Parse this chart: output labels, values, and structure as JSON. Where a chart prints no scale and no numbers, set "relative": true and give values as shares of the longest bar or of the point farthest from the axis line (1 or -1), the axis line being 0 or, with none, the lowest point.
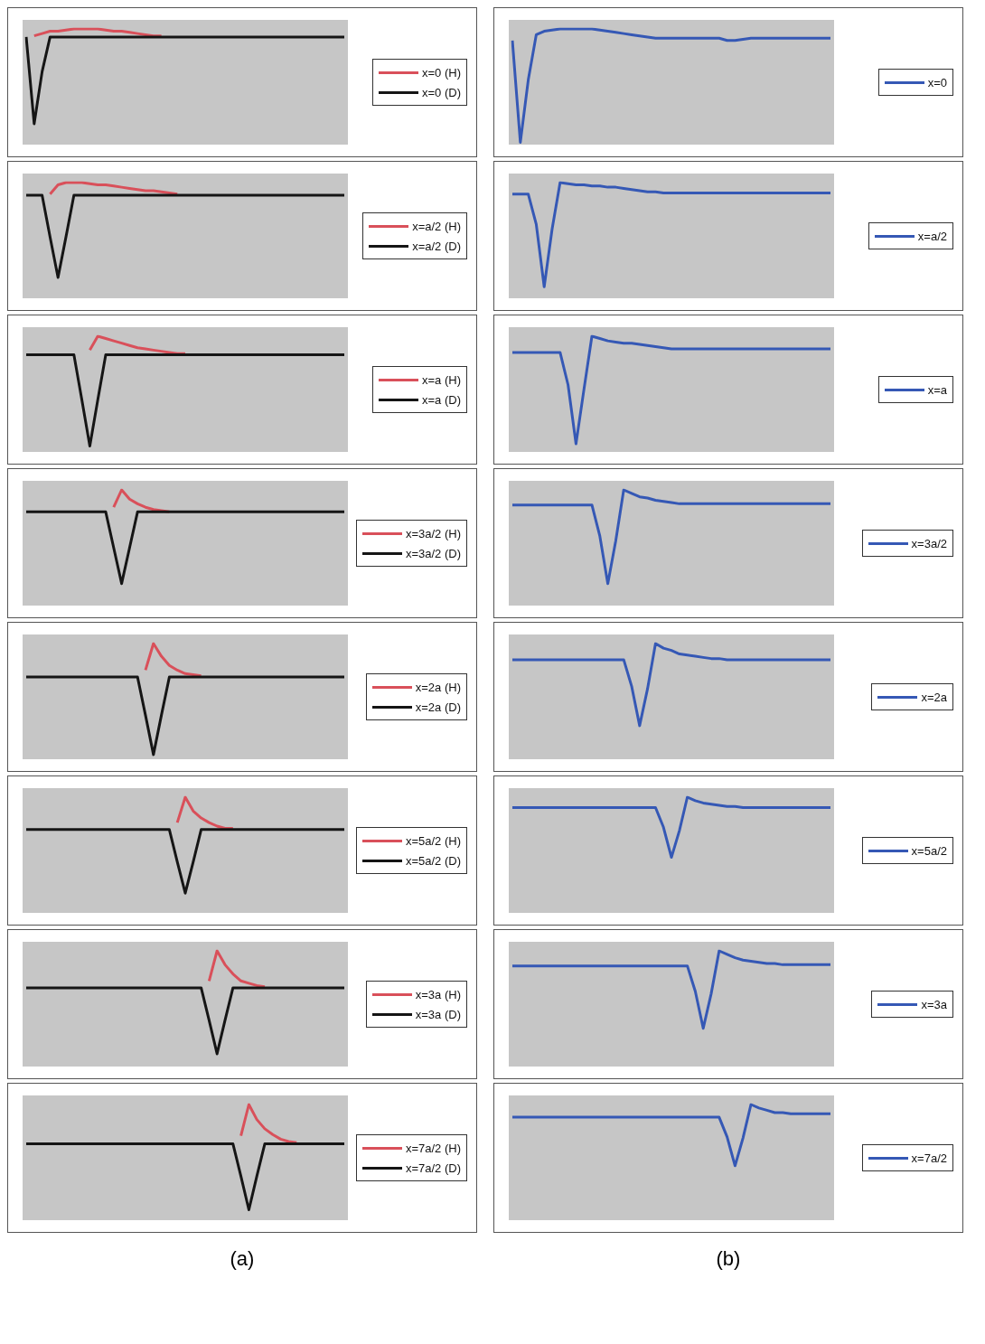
{
  "chart_data": [
    {
      "type": "line",
      "relative": true,
      "legend": "right",
      "categories": [
        null,
        null,
        null,
        null,
        null,
        null,
        null,
        null,
        null,
        null,
        null,
        null,
        null,
        null,
        null,
        null,
        null,
        null,
        null,
        null,
        null,
        null,
        null,
        null,
        null,
        null,
        null,
        null,
        null,
        null,
        null,
        null,
        null,
        null,
        null,
        null,
        null,
        null,
        null,
        null,
        null
      ],
      "series": [
        {
          "name": "x=0 (H)",
          "color": "#d9505a",
          "values": [
            null,
            0.94,
            0.96,
            0.98,
            0.98,
            0.99,
            1,
            1,
            1,
            1,
            0.99,
            0.98,
            0.98,
            0.97,
            0.96,
            0.95,
            0.94,
            0.94,
            null,
            null,
            null,
            null,
            null,
            null,
            null,
            null,
            null,
            null,
            null,
            null,
            null,
            null,
            null,
            null,
            null,
            null,
            null,
            null,
            null,
            null,
            null
          ]
        },
        {
          "name": "x=0 (D)",
          "color": "#151515",
          "values": [
            0.93,
            0.18,
            0.63,
            0.93,
            0.93,
            0.93,
            0.93,
            0.93,
            0.93,
            0.93,
            0.93,
            0.93,
            0.93,
            0.93,
            0.93,
            0.93,
            0.93,
            0.93,
            0.93,
            0.93,
            0.93,
            0.93,
            0.93,
            0.93,
            0.93,
            0.93,
            0.93,
            0.93,
            0.93,
            0.93,
            0.93,
            0.93,
            0.93,
            0.93,
            0.93,
            0.93,
            0.93,
            0.93,
            0.93,
            0.93,
            0.93
          ]
        }
      ]
    },
    {
      "type": "line",
      "relative": true,
      "legend": "right",
      "categories": [
        null,
        null,
        null,
        null,
        null,
        null,
        null,
        null,
        null,
        null,
        null,
        null,
        null,
        null,
        null,
        null,
        null,
        null,
        null,
        null,
        null,
        null,
        null,
        null,
        null,
        null,
        null,
        null,
        null,
        null,
        null,
        null,
        null,
        null,
        null,
        null,
        null,
        null,
        null,
        null,
        null
      ],
      "series": [
        {
          "name": "x=a/2 (H)",
          "color": "#d9505a",
          "values": [
            null,
            null,
            null,
            0.9,
            0.98,
            1,
            1,
            1,
            0.99,
            0.98,
            0.98,
            0.97,
            0.96,
            0.95,
            0.94,
            0.93,
            0.93,
            0.92,
            0.91,
            0.9,
            null,
            null,
            null,
            null,
            null,
            null,
            null,
            null,
            null,
            null,
            null,
            null,
            null,
            null,
            null,
            null,
            null,
            null,
            null,
            null,
            null
          ]
        },
        {
          "name": "x=a/2 (D)",
          "color": "#151515",
          "values": [
            0.89,
            0.89,
            0.89,
            0.53,
            0.18,
            0.53,
            0.89,
            0.89,
            0.89,
            0.89,
            0.89,
            0.89,
            0.89,
            0.89,
            0.89,
            0.89,
            0.89,
            0.89,
            0.89,
            0.89,
            0.89,
            0.89,
            0.89,
            0.89,
            0.89,
            0.89,
            0.89,
            0.89,
            0.89,
            0.89,
            0.89,
            0.89,
            0.89,
            0.89,
            0.89,
            0.89,
            0.89,
            0.89,
            0.89,
            0.89,
            0.89
          ]
        }
      ]
    },
    {
      "type": "line",
      "relative": true,
      "legend": "right",
      "categories": [
        null,
        null,
        null,
        null,
        null,
        null,
        null,
        null,
        null,
        null,
        null,
        null,
        null,
        null,
        null,
        null,
        null,
        null,
        null,
        null,
        null,
        null,
        null,
        null,
        null,
        null,
        null,
        null,
        null,
        null,
        null,
        null,
        null,
        null,
        null,
        null,
        null,
        null,
        null,
        null,
        null
      ],
      "series": [
        {
          "name": "x=a (H)",
          "color": "#d9505a",
          "values": [
            null,
            null,
            null,
            null,
            null,
            null,
            null,
            null,
            0.88,
            1,
            0.98,
            0.96,
            0.94,
            0.92,
            0.9,
            0.89,
            0.88,
            0.87,
            0.86,
            0.85,
            0.85,
            null,
            null,
            null,
            null,
            null,
            null,
            null,
            null,
            null,
            null,
            null,
            null,
            null,
            null,
            null,
            null,
            null,
            null,
            null,
            null
          ]
        },
        {
          "name": "x=a (D)",
          "color": "#151515",
          "values": [
            0.84,
            0.84,
            0.84,
            0.84,
            0.84,
            0.84,
            0.84,
            0.45,
            0.05,
            0.45,
            0.84,
            0.84,
            0.84,
            0.84,
            0.84,
            0.84,
            0.84,
            0.84,
            0.84,
            0.84,
            0.84,
            0.84,
            0.84,
            0.84,
            0.84,
            0.84,
            0.84,
            0.84,
            0.84,
            0.84,
            0.84,
            0.84,
            0.84,
            0.84,
            0.84,
            0.84,
            0.84,
            0.84,
            0.84,
            0.84,
            0.84
          ]
        }
      ]
    },
    {
      "type": "line",
      "relative": true,
      "legend": "right",
      "categories": [
        null,
        null,
        null,
        null,
        null,
        null,
        null,
        null,
        null,
        null,
        null,
        null,
        null,
        null,
        null,
        null,
        null,
        null,
        null,
        null,
        null,
        null,
        null,
        null,
        null,
        null,
        null,
        null,
        null,
        null,
        null,
        null,
        null,
        null,
        null,
        null,
        null,
        null,
        null,
        null,
        null
      ],
      "series": [
        {
          "name": "x=3a/2 (H)",
          "color": "#d9505a",
          "values": [
            null,
            null,
            null,
            null,
            null,
            null,
            null,
            null,
            null,
            null,
            null,
            0.85,
            1,
            0.92,
            0.88,
            0.85,
            0.83,
            0.82,
            0.81,
            null,
            null,
            null,
            null,
            null,
            null,
            null,
            null,
            null,
            null,
            null,
            null,
            null,
            null,
            null,
            null,
            null,
            null,
            null,
            null,
            null,
            null
          ]
        },
        {
          "name": "x=3a/2 (D)",
          "color": "#151515",
          "values": [
            0.81,
            0.81,
            0.81,
            0.81,
            0.81,
            0.81,
            0.81,
            0.81,
            0.81,
            0.81,
            0.81,
            0.5,
            0.19,
            0.5,
            0.81,
            0.81,
            0.81,
            0.81,
            0.81,
            0.81,
            0.81,
            0.81,
            0.81,
            0.81,
            0.81,
            0.81,
            0.81,
            0.81,
            0.81,
            0.81,
            0.81,
            0.81,
            0.81,
            0.81,
            0.81,
            0.81,
            0.81,
            0.81,
            0.81,
            0.81,
            0.81
          ]
        }
      ]
    },
    {
      "type": "line",
      "relative": true,
      "legend": "right",
      "categories": [
        null,
        null,
        null,
        null,
        null,
        null,
        null,
        null,
        null,
        null,
        null,
        null,
        null,
        null,
        null,
        null,
        null,
        null,
        null,
        null,
        null,
        null,
        null,
        null,
        null,
        null,
        null,
        null,
        null,
        null,
        null,
        null,
        null,
        null,
        null,
        null,
        null,
        null,
        null,
        null,
        null
      ],
      "series": [
        {
          "name": "x=2a (H)",
          "color": "#d9505a",
          "values": [
            null,
            null,
            null,
            null,
            null,
            null,
            null,
            null,
            null,
            null,
            null,
            null,
            null,
            null,
            null,
            0.77,
            1,
            0.89,
            0.81,
            0.77,
            0.74,
            0.73,
            0.72,
            null,
            null,
            null,
            null,
            null,
            null,
            null,
            null,
            null,
            null,
            null,
            null,
            null,
            null,
            null,
            null,
            null,
            null
          ]
        },
        {
          "name": "x=2a (D)",
          "color": "#151515",
          "values": [
            0.71,
            0.71,
            0.71,
            0.71,
            0.71,
            0.71,
            0.71,
            0.71,
            0.71,
            0.71,
            0.71,
            0.71,
            0.71,
            0.71,
            0.71,
            0.38,
            0.04,
            0.38,
            0.71,
            0.71,
            0.71,
            0.71,
            0.71,
            0.71,
            0.71,
            0.71,
            0.71,
            0.71,
            0.71,
            0.71,
            0.71,
            0.71,
            0.71,
            0.71,
            0.71,
            0.71,
            0.71,
            0.71,
            0.71,
            0.71,
            0.71
          ]
        }
      ]
    },
    {
      "type": "line",
      "relative": true,
      "legend": "right",
      "categories": [
        null,
        null,
        null,
        null,
        null,
        null,
        null,
        null,
        null,
        null,
        null,
        null,
        null,
        null,
        null,
        null,
        null,
        null,
        null,
        null,
        null,
        null,
        null,
        null,
        null,
        null,
        null,
        null,
        null,
        null,
        null,
        null,
        null,
        null,
        null,
        null,
        null,
        null,
        null,
        null,
        null
      ],
      "series": [
        {
          "name": "x=5a/2 (H)",
          "color": "#d9505a",
          "values": [
            null,
            null,
            null,
            null,
            null,
            null,
            null,
            null,
            null,
            null,
            null,
            null,
            null,
            null,
            null,
            null,
            null,
            null,
            null,
            0.78,
            1,
            0.88,
            0.82,
            0.78,
            0.75,
            0.73,
            0.73,
            null,
            null,
            null,
            null,
            null,
            null,
            null,
            null,
            null,
            null,
            null,
            null,
            null,
            null
          ]
        },
        {
          "name": "x=5a/2 (D)",
          "color": "#151515",
          "values": [
            0.72,
            0.72,
            0.72,
            0.72,
            0.72,
            0.72,
            0.72,
            0.72,
            0.72,
            0.72,
            0.72,
            0.72,
            0.72,
            0.72,
            0.72,
            0.72,
            0.72,
            0.72,
            0.72,
            0.44,
            0.17,
            0.44,
            0.72,
            0.72,
            0.72,
            0.72,
            0.72,
            0.72,
            0.72,
            0.72,
            0.72,
            0.72,
            0.72,
            0.72,
            0.72,
            0.72,
            0.72,
            0.72,
            0.72,
            0.72,
            0.72
          ]
        }
      ]
    },
    {
      "type": "line",
      "relative": true,
      "legend": "right",
      "categories": [
        null,
        null,
        null,
        null,
        null,
        null,
        null,
        null,
        null,
        null,
        null,
        null,
        null,
        null,
        null,
        null,
        null,
        null,
        null,
        null,
        null,
        null,
        null,
        null,
        null,
        null,
        null,
        null,
        null,
        null,
        null,
        null,
        null,
        null,
        null,
        null,
        null,
        null,
        null,
        null,
        null
      ],
      "series": [
        {
          "name": "x=3a (H)",
          "color": "#d9505a",
          "values": [
            null,
            null,
            null,
            null,
            null,
            null,
            null,
            null,
            null,
            null,
            null,
            null,
            null,
            null,
            null,
            null,
            null,
            null,
            null,
            null,
            null,
            null,
            null,
            0.74,
            1,
            0.88,
            0.8,
            0.74,
            0.72,
            0.7,
            0.69,
            null,
            null,
            null,
            null,
            null,
            null,
            null,
            null,
            null,
            null
          ]
        },
        {
          "name": "x=3a (D)",
          "color": "#151515",
          "values": [
            0.68,
            0.68,
            0.68,
            0.68,
            0.68,
            0.68,
            0.68,
            0.68,
            0.68,
            0.68,
            0.68,
            0.68,
            0.68,
            0.68,
            0.68,
            0.68,
            0.68,
            0.68,
            0.68,
            0.68,
            0.68,
            0.68,
            0.68,
            0.4,
            0.11,
            0.4,
            0.68,
            0.68,
            0.68,
            0.68,
            0.68,
            0.68,
            0.68,
            0.68,
            0.68,
            0.68,
            0.68,
            0.68,
            0.68,
            0.68,
            0.68
          ]
        }
      ]
    },
    {
      "type": "line",
      "relative": true,
      "legend": "right",
      "annotations": [
        "(a)"
      ],
      "categories": [
        null,
        null,
        null,
        null,
        null,
        null,
        null,
        null,
        null,
        null,
        null,
        null,
        null,
        null,
        null,
        null,
        null,
        null,
        null,
        null,
        null,
        null,
        null,
        null,
        null,
        null,
        null,
        null,
        null,
        null,
        null,
        null,
        null,
        null,
        null,
        null,
        null,
        null,
        null,
        null,
        null
      ],
      "series": [
        {
          "name": "x=7a/2 (H)",
          "color": "#d9505a",
          "values": [
            null,
            null,
            null,
            null,
            null,
            null,
            null,
            null,
            null,
            null,
            null,
            null,
            null,
            null,
            null,
            null,
            null,
            null,
            null,
            null,
            null,
            null,
            null,
            null,
            null,
            null,
            null,
            0.73,
            1,
            0.87,
            0.79,
            0.74,
            0.7,
            0.68,
            0.67,
            null,
            null,
            null,
            null,
            null,
            null
          ]
        },
        {
          "name": "x=7a/2 (D)",
          "color": "#151515",
          "values": [
            0.66,
            0.66,
            0.66,
            0.66,
            0.66,
            0.66,
            0.66,
            0.66,
            0.66,
            0.66,
            0.66,
            0.66,
            0.66,
            0.66,
            0.66,
            0.66,
            0.66,
            0.66,
            0.66,
            0.66,
            0.66,
            0.66,
            0.66,
            0.66,
            0.66,
            0.66,
            0.66,
            0.38,
            0.09,
            0.38,
            0.66,
            0.66,
            0.66,
            0.66,
            0.66,
            0.66,
            0.66,
            0.66,
            0.66,
            0.66,
            0.66
          ]
        }
      ]
    },
    {
      "type": "line",
      "relative": true,
      "legend": "right",
      "categories": [
        null,
        null,
        null,
        null,
        null,
        null,
        null,
        null,
        null,
        null,
        null,
        null,
        null,
        null,
        null,
        null,
        null,
        null,
        null,
        null,
        null,
        null,
        null,
        null,
        null,
        null,
        null,
        null,
        null,
        null,
        null,
        null,
        null,
        null,
        null,
        null,
        null,
        null,
        null,
        null,
        null
      ],
      "series": [
        {
          "name": "x=0",
          "color": "#3558b5",
          "values": [
            0.9,
            0.02,
            0.56,
            0.95,
            0.98,
            0.99,
            1,
            1,
            1,
            1,
            1,
            0.99,
            0.98,
            0.97,
            0.96,
            0.95,
            0.94,
            0.93,
            0.92,
            0.92,
            0.92,
            0.92,
            0.92,
            0.92,
            0.92,
            0.92,
            0.92,
            0.9,
            0.9,
            0.91,
            0.92,
            0.92,
            0.92,
            0.92,
            0.92,
            0.92,
            0.92,
            0.92,
            0.92,
            0.92,
            0.92
          ]
        }
      ]
    },
    {
      "type": "line",
      "relative": true,
      "legend": "right",
      "categories": [
        null,
        null,
        null,
        null,
        null,
        null,
        null,
        null,
        null,
        null,
        null,
        null,
        null,
        null,
        null,
        null,
        null,
        null,
        null,
        null,
        null,
        null,
        null,
        null,
        null,
        null,
        null,
        null,
        null,
        null,
        null,
        null,
        null,
        null,
        null,
        null,
        null,
        null,
        null,
        null,
        null
      ],
      "series": [
        {
          "name": "x=a/2",
          "color": "#3558b5",
          "values": [
            0.9,
            0.9,
            0.9,
            0.64,
            0.1,
            0.6,
            1,
            0.99,
            0.98,
            0.98,
            0.97,
            0.97,
            0.96,
            0.96,
            0.95,
            0.94,
            0.93,
            0.92,
            0.92,
            0.91,
            0.91,
            0.91,
            0.91,
            0.91,
            0.91,
            0.91,
            0.91,
            0.91,
            0.91,
            0.91,
            0.91,
            0.91,
            0.91,
            0.91,
            0.91,
            0.91,
            0.91,
            0.91,
            0.91,
            0.91,
            0.91
          ]
        }
      ]
    },
    {
      "type": "line",
      "relative": true,
      "legend": "right",
      "categories": [
        null,
        null,
        null,
        null,
        null,
        null,
        null,
        null,
        null,
        null,
        null,
        null,
        null,
        null,
        null,
        null,
        null,
        null,
        null,
        null,
        null,
        null,
        null,
        null,
        null,
        null,
        null,
        null,
        null,
        null,
        null,
        null,
        null,
        null,
        null,
        null,
        null,
        null,
        null,
        null,
        null
      ],
      "series": [
        {
          "name": "x=a",
          "color": "#3558b5",
          "values": [
            0.86,
            0.86,
            0.86,
            0.86,
            0.86,
            0.86,
            0.86,
            0.58,
            0.07,
            0.54,
            1,
            0.98,
            0.96,
            0.95,
            0.94,
            0.94,
            0.93,
            0.92,
            0.91,
            0.9,
            0.89,
            0.89,
            0.89,
            0.89,
            0.89,
            0.89,
            0.89,
            0.89,
            0.89,
            0.89,
            0.89,
            0.89,
            0.89,
            0.89,
            0.89,
            0.89,
            0.89,
            0.89,
            0.89,
            0.89,
            0.89
          ]
        }
      ]
    },
    {
      "type": "line",
      "relative": true,
      "legend": "right",
      "categories": [
        null,
        null,
        null,
        null,
        null,
        null,
        null,
        null,
        null,
        null,
        null,
        null,
        null,
        null,
        null,
        null,
        null,
        null,
        null,
        null,
        null,
        null,
        null,
        null,
        null,
        null,
        null,
        null,
        null,
        null,
        null,
        null,
        null,
        null,
        null,
        null,
        null,
        null,
        null,
        null,
        null
      ],
      "series": [
        {
          "name": "x=3a/2",
          "color": "#3558b5",
          "values": [
            0.87,
            0.87,
            0.87,
            0.87,
            0.87,
            0.87,
            0.87,
            0.87,
            0.87,
            0.87,
            0.87,
            0.6,
            0.19,
            0.56,
            1,
            0.97,
            0.94,
            0.93,
            0.91,
            0.9,
            0.89,
            0.88,
            0.88,
            0.88,
            0.88,
            0.88,
            0.88,
            0.88,
            0.88,
            0.88,
            0.88,
            0.88,
            0.88,
            0.88,
            0.88,
            0.88,
            0.88,
            0.88,
            0.88,
            0.88,
            0.88
          ]
        }
      ]
    },
    {
      "type": "line",
      "relative": true,
      "legend": "right",
      "categories": [
        null,
        null,
        null,
        null,
        null,
        null,
        null,
        null,
        null,
        null,
        null,
        null,
        null,
        null,
        null,
        null,
        null,
        null,
        null,
        null,
        null,
        null,
        null,
        null,
        null,
        null,
        null,
        null,
        null,
        null,
        null,
        null,
        null,
        null,
        null,
        null,
        null,
        null,
        null,
        null,
        null
      ],
      "series": [
        {
          "name": "x=2a",
          "color": "#3558b5",
          "values": [
            0.86,
            0.86,
            0.86,
            0.86,
            0.86,
            0.86,
            0.86,
            0.86,
            0.86,
            0.86,
            0.86,
            0.86,
            0.86,
            0.86,
            0.86,
            0.63,
            0.29,
            0.61,
            1,
            0.96,
            0.94,
            0.91,
            0.9,
            0.89,
            0.88,
            0.87,
            0.87,
            0.86,
            0.86,
            0.86,
            0.86,
            0.86,
            0.86,
            0.86,
            0.86,
            0.86,
            0.86,
            0.86,
            0.86,
            0.86,
            0.86
          ]
        }
      ]
    },
    {
      "type": "line",
      "relative": true,
      "legend": "right",
      "categories": [
        null,
        null,
        null,
        null,
        null,
        null,
        null,
        null,
        null,
        null,
        null,
        null,
        null,
        null,
        null,
        null,
        null,
        null,
        null,
        null,
        null,
        null,
        null,
        null,
        null,
        null,
        null,
        null,
        null,
        null,
        null,
        null,
        null,
        null,
        null,
        null,
        null,
        null,
        null,
        null,
        null
      ],
      "series": [
        {
          "name": "x=5a/2",
          "color": "#3558b5",
          "values": [
            0.91,
            0.91,
            0.91,
            0.91,
            0.91,
            0.91,
            0.91,
            0.91,
            0.91,
            0.91,
            0.91,
            0.91,
            0.91,
            0.91,
            0.91,
            0.91,
            0.91,
            0.91,
            0.91,
            0.74,
            0.48,
            0.71,
            1,
            0.97,
            0.95,
            0.94,
            0.93,
            0.92,
            0.92,
            0.91,
            0.91,
            0.91,
            0.91,
            0.91,
            0.91,
            0.91,
            0.91,
            0.91,
            0.91,
            0.91,
            0.91
          ]
        }
      ]
    },
    {
      "type": "line",
      "relative": true,
      "legend": "right",
      "categories": [
        null,
        null,
        null,
        null,
        null,
        null,
        null,
        null,
        null,
        null,
        null,
        null,
        null,
        null,
        null,
        null,
        null,
        null,
        null,
        null,
        null,
        null,
        null,
        null,
        null,
        null,
        null,
        null,
        null,
        null,
        null,
        null,
        null,
        null,
        null,
        null,
        null,
        null,
        null,
        null,
        null
      ],
      "series": [
        {
          "name": "x=3a",
          "color": "#3558b5",
          "values": [
            0.87,
            0.87,
            0.87,
            0.87,
            0.87,
            0.87,
            0.87,
            0.87,
            0.87,
            0.87,
            0.87,
            0.87,
            0.87,
            0.87,
            0.87,
            0.87,
            0.87,
            0.87,
            0.87,
            0.87,
            0.87,
            0.87,
            0.87,
            0.65,
            0.33,
            0.63,
            1,
            0.97,
            0.94,
            0.92,
            0.91,
            0.9,
            0.89,
            0.89,
            0.88,
            0.88,
            0.88,
            0.88,
            0.88,
            0.88,
            0.88
          ]
        }
      ]
    },
    {
      "type": "line",
      "relative": true,
      "legend": "right",
      "annotations": [
        "(b)"
      ],
      "categories": [
        null,
        null,
        null,
        null,
        null,
        null,
        null,
        null,
        null,
        null,
        null,
        null,
        null,
        null,
        null,
        null,
        null,
        null,
        null,
        null,
        null,
        null,
        null,
        null,
        null,
        null,
        null,
        null,
        null,
        null,
        null,
        null,
        null,
        null,
        null,
        null,
        null,
        null,
        null,
        null,
        null
      ],
      "series": [
        {
          "name": "x=7a/2",
          "color": "#3558b5",
          "values": [
            0.89,
            0.89,
            0.89,
            0.89,
            0.89,
            0.89,
            0.89,
            0.89,
            0.89,
            0.89,
            0.89,
            0.89,
            0.89,
            0.89,
            0.89,
            0.89,
            0.89,
            0.89,
            0.89,
            0.89,
            0.89,
            0.89,
            0.89,
            0.89,
            0.89,
            0.89,
            0.89,
            0.72,
            0.47,
            0.71,
            1,
            0.97,
            0.95,
            0.93,
            0.93,
            0.92,
            0.92,
            0.92,
            0.92,
            0.92,
            0.92
          ]
        }
      ]
    }
  ]
}
